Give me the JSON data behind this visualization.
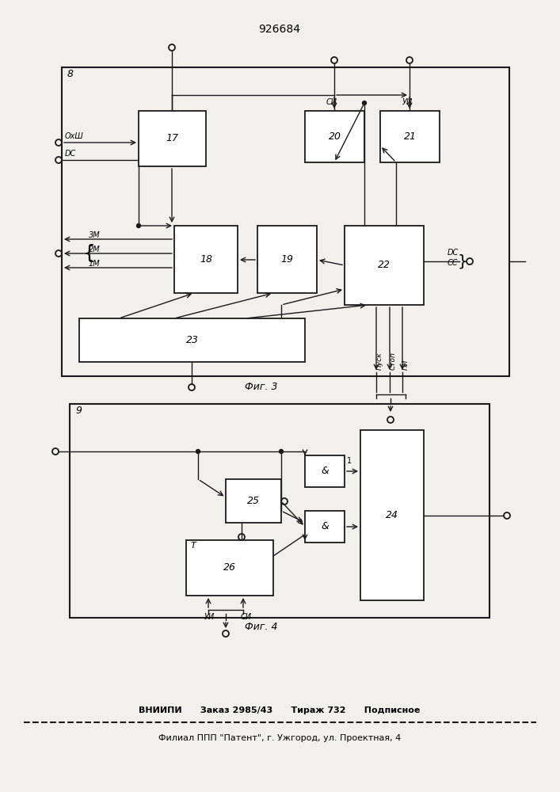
{
  "title": "926684",
  "fig3_label": "8",
  "fig4_label": "9",
  "caption3": "Фиг. 3",
  "caption4": "Фиг. 4",
  "footer_line1": "ВНИИПИ      Заказ 2985/43      Тираж 732      Подписное",
  "footer_line2": "Филиал ППП \"Патент\", г. Ужгород, ул. Проектная, 4",
  "bg_color": "#f2f0eb",
  "box_color": "#ffffff",
  "line_color": "#1a1a1a"
}
